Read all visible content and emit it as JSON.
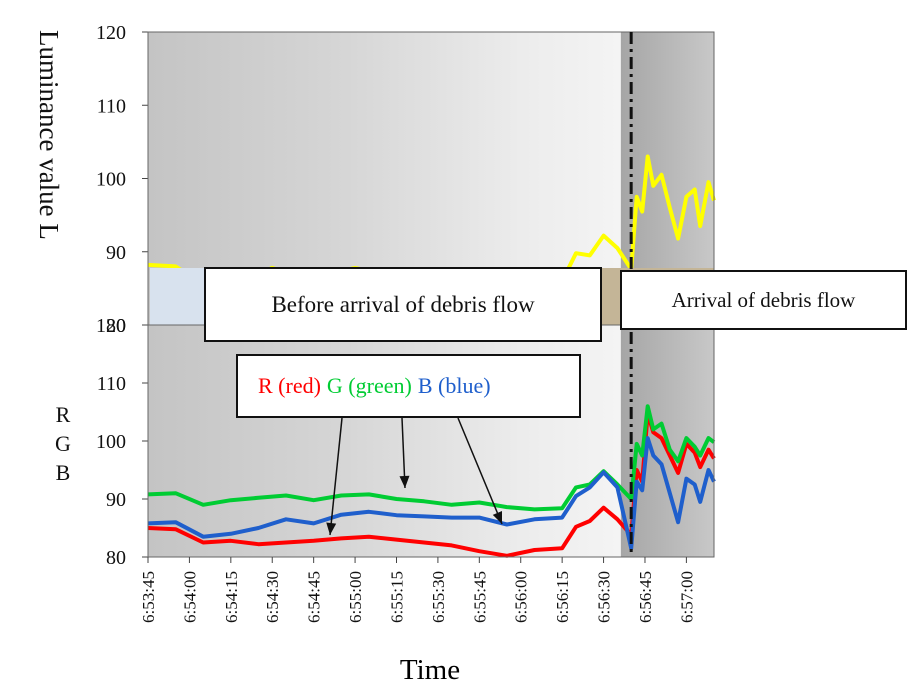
{
  "chart_data": [
    {
      "type": "line",
      "title": "",
      "ylabel": "Luminance value L",
      "xlabel": "",
      "ylim": [
        80,
        120
      ],
      "yticks": [
        80,
        90,
        100,
        110,
        120
      ],
      "x_range": [
        "6:53:45",
        "6:57:10"
      ],
      "annotation_region": "Before arrival of debris flow",
      "annotation_event": "Arrival of debris flow",
      "event_time": "6:56:40",
      "series": [
        {
          "name": "L",
          "color": "#ffff00",
          "points": [
            [
              "6:53:45",
              88.2
            ],
            [
              "6:53:55",
              88.0
            ],
            [
              "6:54:05",
              85.6
            ],
            [
              "6:54:15",
              86.3
            ],
            [
              "6:54:25",
              87.0
            ],
            [
              "6:54:30",
              87.8
            ],
            [
              "6:54:40",
              86.5
            ],
            [
              "6:54:50",
              87.0
            ],
            [
              "6:55:00",
              87.8
            ],
            [
              "6:55:10",
              87.0
            ],
            [
              "6:55:20",
              86.6
            ],
            [
              "6:55:30",
              86.2
            ],
            [
              "6:55:40",
              86.4
            ],
            [
              "6:55:50",
              85.2
            ],
            [
              "6:56:00",
              85.5
            ],
            [
              "6:56:10",
              85.5
            ],
            [
              "6:56:15",
              86.0
            ],
            [
              "6:56:20",
              89.8
            ],
            [
              "6:56:25",
              89.5
            ],
            [
              "6:56:30",
              92.2
            ],
            [
              "6:56:35",
              90.5
            ],
            [
              "6:56:40",
              87.6
            ],
            [
              "6:56:42",
              97.5
            ],
            [
              "6:56:44",
              95.5
            ],
            [
              "6:56:46",
              103.0
            ],
            [
              "6:56:48",
              99.0
            ],
            [
              "6:56:51",
              100.5
            ],
            [
              "6:56:54",
              96.0
            ],
            [
              "6:56:57",
              91.8
            ],
            [
              "6:57:00",
              97.5
            ],
            [
              "6:57:03",
              98.5
            ],
            [
              "6:57:05",
              93.5
            ],
            [
              "6:57:08",
              99.5
            ],
            [
              "6:57:10",
              97.0
            ]
          ]
        }
      ]
    },
    {
      "type": "line",
      "title": "",
      "ylabel": "R G B",
      "xlabel": "Time",
      "ylim": [
        80,
        120
      ],
      "yticks": [
        80,
        90,
        100,
        110,
        120
      ],
      "xticks": [
        "6:53:45",
        "6:54:00",
        "6:54:15",
        "6:54:30",
        "6:54:45",
        "6:55:00",
        "6:55:15",
        "6:55:30",
        "6:55:45",
        "6:56:00",
        "6:56:15",
        "6:56:30",
        "6:56:45",
        "6:57:00"
      ],
      "x_range": [
        "6:53:45",
        "6:57:10"
      ],
      "event_time": "6:56:40",
      "legend": [
        {
          "label": "R (red)",
          "color": "#ff0000"
        },
        {
          "label": "G (green)",
          "color": "#00cc33"
        },
        {
          "label": "B (blue)",
          "color": "#1f5fcc"
        }
      ],
      "series": [
        {
          "name": "R (red)",
          "color": "#ff0000",
          "points": [
            [
              "6:53:45",
              85.0
            ],
            [
              "6:53:55",
              84.8
            ],
            [
              "6:54:05",
              82.5
            ],
            [
              "6:54:15",
              82.8
            ],
            [
              "6:54:25",
              82.2
            ],
            [
              "6:54:35",
              82.5
            ],
            [
              "6:54:45",
              82.8
            ],
            [
              "6:54:55",
              83.2
            ],
            [
              "6:55:05",
              83.5
            ],
            [
              "6:55:15",
              83.0
            ],
            [
              "6:55:25",
              82.5
            ],
            [
              "6:55:35",
              82.0
            ],
            [
              "6:55:45",
              81.0
            ],
            [
              "6:55:55",
              80.2
            ],
            [
              "6:56:05",
              81.2
            ],
            [
              "6:56:15",
              81.5
            ],
            [
              "6:56:20",
              85.2
            ],
            [
              "6:56:25",
              86.2
            ],
            [
              "6:56:30",
              88.5
            ],
            [
              "6:56:35",
              86.5
            ],
            [
              "6:56:40",
              83.8
            ],
            [
              "6:56:42",
              95.0
            ],
            [
              "6:56:44",
              93.0
            ],
            [
              "6:56:46",
              104.8
            ],
            [
              "6:56:48",
              101.5
            ],
            [
              "6:56:51",
              100.5
            ],
            [
              "6:56:54",
              97.5
            ],
            [
              "6:56:57",
              94.5
            ],
            [
              "6:57:00",
              99.5
            ],
            [
              "6:57:03",
              98.0
            ],
            [
              "6:57:05",
              95.5
            ],
            [
              "6:57:08",
              98.5
            ],
            [
              "6:57:10",
              97.0
            ]
          ]
        },
        {
          "name": "G (green)",
          "color": "#00cc33",
          "points": [
            [
              "6:53:45",
              90.8
            ],
            [
              "6:53:55",
              91.0
            ],
            [
              "6:54:05",
              89.0
            ],
            [
              "6:54:15",
              89.8
            ],
            [
              "6:54:25",
              90.2
            ],
            [
              "6:54:35",
              90.6
            ],
            [
              "6:54:45",
              89.8
            ],
            [
              "6:54:55",
              90.6
            ],
            [
              "6:55:05",
              90.8
            ],
            [
              "6:55:15",
              90.0
            ],
            [
              "6:55:25",
              89.6
            ],
            [
              "6:55:35",
              89.0
            ],
            [
              "6:55:45",
              89.4
            ],
            [
              "6:55:55",
              88.6
            ],
            [
              "6:56:05",
              88.2
            ],
            [
              "6:56:15",
              88.4
            ],
            [
              "6:56:20",
              92.0
            ],
            [
              "6:56:25",
              92.5
            ],
            [
              "6:56:30",
              94.8
            ],
            [
              "6:56:35",
              92.5
            ],
            [
              "6:56:40",
              90.0
            ],
            [
              "6:56:42",
              99.5
            ],
            [
              "6:56:44",
              97.5
            ],
            [
              "6:56:46",
              106.0
            ],
            [
              "6:56:48",
              102.0
            ],
            [
              "6:56:51",
              103.0
            ],
            [
              "6:56:54",
              98.5
            ],
            [
              "6:56:57",
              96.5
            ],
            [
              "6:57:00",
              100.5
            ],
            [
              "6:57:03",
              99.0
            ],
            [
              "6:57:05",
              97.5
            ],
            [
              "6:57:08",
              100.5
            ],
            [
              "6:57:10",
              99.8
            ]
          ]
        },
        {
          "name": "B (blue)",
          "color": "#1f5fcc",
          "points": [
            [
              "6:53:45",
              85.8
            ],
            [
              "6:53:55",
              86.0
            ],
            [
              "6:54:05",
              83.5
            ],
            [
              "6:54:15",
              84.0
            ],
            [
              "6:54:25",
              85.0
            ],
            [
              "6:54:35",
              86.5
            ],
            [
              "6:54:45",
              85.8
            ],
            [
              "6:54:55",
              87.3
            ],
            [
              "6:55:05",
              87.8
            ],
            [
              "6:55:15",
              87.2
            ],
            [
              "6:55:25",
              87.0
            ],
            [
              "6:55:35",
              86.8
            ],
            [
              "6:55:45",
              86.8
            ],
            [
              "6:55:55",
              85.6
            ],
            [
              "6:56:05",
              86.5
            ],
            [
              "6:56:15",
              86.8
            ],
            [
              "6:56:20",
              90.5
            ],
            [
              "6:56:25",
              92.0
            ],
            [
              "6:56:30",
              94.6
            ],
            [
              "6:56:35",
              92.0
            ],
            [
              "6:56:40",
              81.5
            ],
            [
              "6:56:42",
              93.0
            ],
            [
              "6:56:44",
              91.5
            ],
            [
              "6:56:46",
              100.5
            ],
            [
              "6:56:48",
              97.5
            ],
            [
              "6:56:51",
              96.0
            ],
            [
              "6:56:54",
              91.0
            ],
            [
              "6:56:57",
              86.0
            ],
            [
              "6:57:00",
              93.5
            ],
            [
              "6:57:03",
              92.5
            ],
            [
              "6:57:05",
              89.5
            ],
            [
              "6:57:08",
              95.0
            ],
            [
              "6:57:10",
              93.0
            ]
          ]
        }
      ]
    }
  ]
}
